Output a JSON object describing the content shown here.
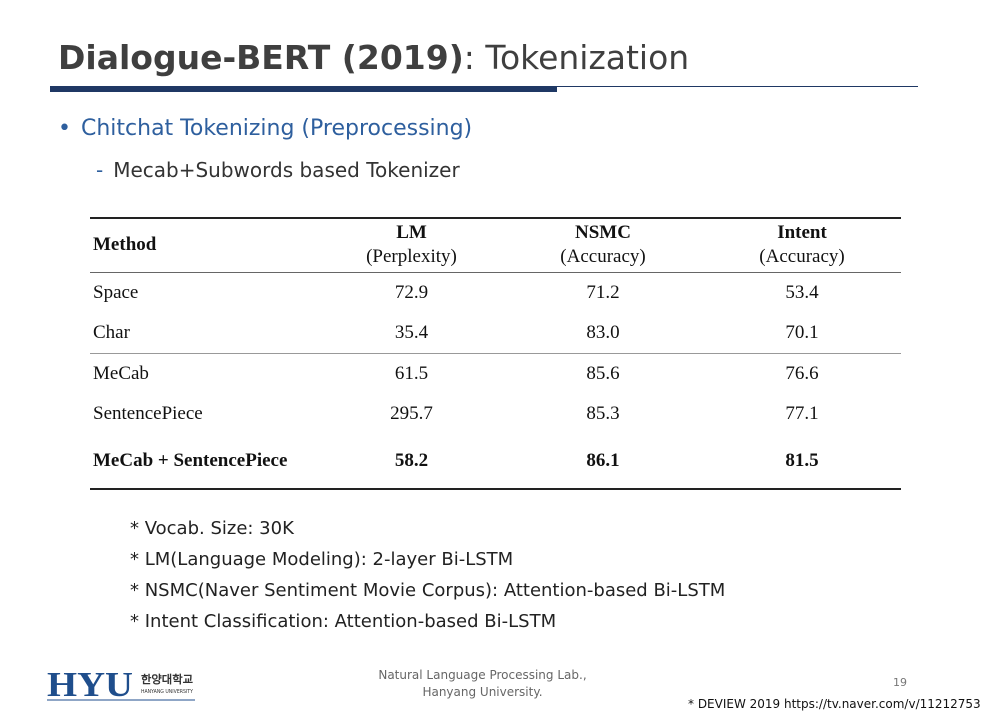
{
  "slide": {
    "title_bold": "Dialogue-BERT (2019)",
    "title_rest": ": Tokenization",
    "bullet_level1": "Chitchat Tokenizing (Preprocessing)",
    "bullet_level2": "Mecab+Subwords based Tokenizer"
  },
  "table": {
    "headers": [
      {
        "line1": "Method",
        "line2": ""
      },
      {
        "line1": "LM",
        "line2": "(Perplexity)"
      },
      {
        "line1": "NSMC",
        "line2": "(Accuracy)"
      },
      {
        "line1": "Intent",
        "line2": "(Accuracy)"
      }
    ],
    "rows": [
      {
        "method": "Space",
        "lm": "72.9",
        "nsmc": "71.2",
        "intent": "53.4"
      },
      {
        "method": "Char",
        "lm": "35.4",
        "nsmc": "83.0",
        "intent": "70.1"
      },
      {
        "method": "MeCab",
        "lm": "61.5",
        "nsmc": "85.6",
        "intent": "76.6"
      },
      {
        "method": "SentencePiece",
        "lm": "295.7",
        "nsmc": "85.3",
        "intent": "77.1"
      },
      {
        "method": "MeCab + SentencePiece",
        "lm": "58.2",
        "nsmc": "86.1",
        "intent": "81.5"
      }
    ]
  },
  "notes": [
    "* Vocab. Size: 30K",
    "* LM(Language Modeling): 2-layer Bi-LSTM",
    "* NSMC(Naver Sentiment  Movie Corpus): Attention-based  Bi-LSTM",
    "* Intent Classification: Attention-based  Bi-LSTM"
  ],
  "footer": {
    "logo_text": "HYU",
    "logo_korean": "한양대학교",
    "logo_english": "HANYANG UNIVERSITY",
    "lab_line1": "Natural Language Processing  Lab.,",
    "lab_line2": "Hanyang University.",
    "page_number": "19",
    "source": "* DEVIEW 2019 https://tv.naver.com/v/11212753"
  },
  "colors": {
    "accent_blue": "#2e5f9e",
    "rule_navy": "#1f3864"
  }
}
